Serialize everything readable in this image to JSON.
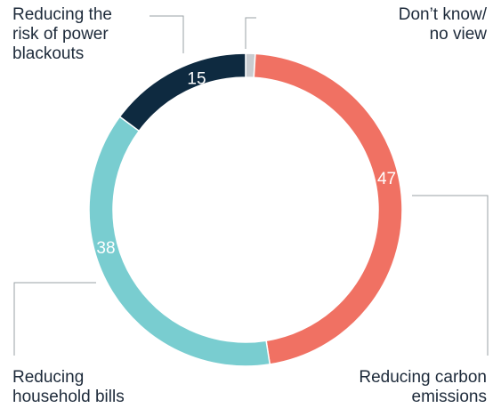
{
  "chart_data": {
    "type": "pie",
    "donut": true,
    "slices": [
      {
        "lines": [
          "Don’t know/",
          "no view"
        ],
        "value": 1,
        "value_label": "",
        "color": "#c9ccd0",
        "label_color": "#ffffff"
      },
      {
        "lines": [
          "Reducing carbon",
          "emissions"
        ],
        "value": 47,
        "value_label": "47",
        "color": "#f07163",
        "label_color": "#ffffff"
      },
      {
        "lines": [
          "Reducing",
          "household bills"
        ],
        "value": 38,
        "value_label": "38",
        "color": "#79cdd0",
        "label_color": "#ffffff"
      },
      {
        "lines": [
          "Reducing the",
          "risk of power",
          "blackouts"
        ],
        "value": 15,
        "value_label": "15",
        "color": "#0e2a40",
        "label_color": "#ffffff"
      }
    ]
  }
}
